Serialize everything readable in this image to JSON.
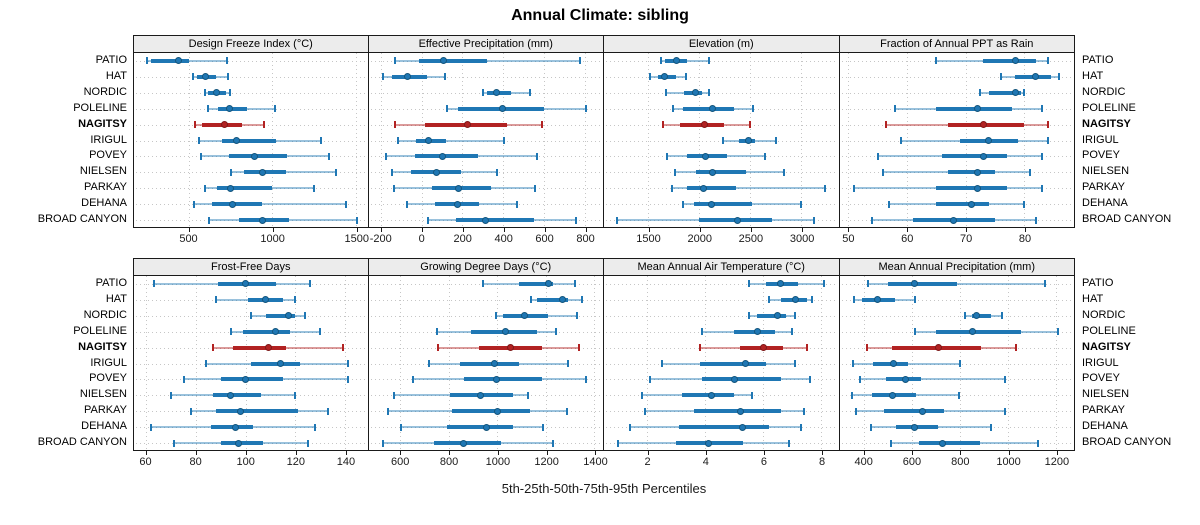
{
  "title": "Annual Climate: sibling",
  "caption": "5th-25th-50th-75th-95th Percentiles",
  "sites": [
    "PATIO",
    "HAT",
    "NORDIC",
    "POLELINE",
    "NAGITSY",
    "IRIGUL",
    "POVEY",
    "NIELSEN",
    "PARKAY",
    "DEHANA",
    "BROAD CANYON"
  ],
  "highlight_site": "NAGITSY",
  "percentile_labels": [
    "5th",
    "25th",
    "50th",
    "75th",
    "95th"
  ],
  "colors": {
    "series_blue": "#1f77b4",
    "series_blue_dark": "#14557c",
    "highlight_red": "#b22222",
    "highlight_red_dark": "#7e1818",
    "strip_bg": "#ececec",
    "panel_border": "#1a1a1a",
    "gridline": "#c6c6c6"
  },
  "chart_data": [
    {
      "type": "scatter",
      "style": "percentile-interval-dotplot",
      "title": "Design Freeze Index (°C)",
      "xlim": [
        170,
        1570
      ],
      "ticks": [
        500,
        1000,
        1500
      ],
      "values": [
        [
          250,
          270,
          435,
          500,
          730
        ],
        [
          525,
          550,
          600,
          660,
          735
        ],
        [
          595,
          615,
          665,
          720,
          745
        ],
        [
          615,
          675,
          745,
          850,
          1015
        ],
        [
          535,
          580,
          715,
          820,
          950
        ],
        [
          560,
          700,
          785,
          1020,
          1290
        ],
        [
          570,
          740,
          890,
          1090,
          1340
        ],
        [
          750,
          830,
          940,
          1080,
          1380
        ],
        [
          595,
          670,
          750,
          1000,
          1250
        ],
        [
          530,
          640,
          760,
          940,
          1440
        ],
        [
          620,
          800,
          940,
          1100,
          1505
        ]
      ]
    },
    {
      "type": "scatter",
      "style": "percentile-interval-dotplot",
      "title": "Effective Precipitation (mm)",
      "xlim": [
        -260,
        890
      ],
      "ticks": [
        -200,
        0,
        200,
        400,
        600,
        800
      ],
      "values": [
        [
          -130,
          -10,
          110,
          320,
          775
        ],
        [
          -190,
          -145,
          -70,
          25,
          115
        ],
        [
          300,
          320,
          370,
          440,
          530
        ],
        [
          125,
          180,
          395,
          600,
          805
        ],
        [
          -130,
          15,
          225,
          420,
          590
        ],
        [
          -115,
          -25,
          35,
          120,
          405
        ],
        [
          -175,
          -30,
          105,
          275,
          565
        ],
        [
          -145,
          -50,
          75,
          195,
          370
        ],
        [
          -135,
          50,
          180,
          340,
          555
        ],
        [
          -70,
          65,
          175,
          280,
          470
        ],
        [
          30,
          170,
          315,
          550,
          760
        ]
      ]
    },
    {
      "type": "scatter",
      "style": "percentile-interval-dotplot",
      "title": "Elevation (m)",
      "xlim": [
        1065,
        3365
      ],
      "ticks": [
        1500,
        2000,
        2500,
        3000
      ],
      "values": [
        [
          1620,
          1660,
          1775,
          1880,
          2095
        ],
        [
          1515,
          1590,
          1660,
          1770,
          1865
        ],
        [
          1670,
          1850,
          1965,
          2030,
          2095
        ],
        [
          1740,
          1835,
          2125,
          2340,
          2525
        ],
        [
          1645,
          1815,
          2055,
          2240,
          2500
        ],
        [
          2230,
          2390,
          2480,
          2550,
          2750
        ],
        [
          1685,
          1875,
          2060,
          2275,
          2645
        ],
        [
          1760,
          1965,
          2125,
          2455,
          2830
        ],
        [
          1730,
          1875,
          2040,
          2355,
          3230
        ],
        [
          1835,
          1950,
          2120,
          2520,
          3000
        ],
        [
          1195,
          2000,
          2370,
          2715,
          3125
        ]
      ]
    },
    {
      "type": "scatter",
      "style": "percentile-interval-dotplot",
      "title": "Fraction of Annual PPT as Rain",
      "xlim": [
        48.5,
        88.5
      ],
      "ticks": [
        50,
        60,
        70,
        80
      ],
      "values": [
        [
          65,
          73,
          78.5,
          82,
          84
        ],
        [
          76,
          78.5,
          82,
          84.5,
          86
        ],
        [
          72.5,
          74,
          78.5,
          79.5,
          80
        ],
        [
          58,
          65,
          72,
          78,
          83
        ],
        [
          56.5,
          67,
          73,
          80,
          84
        ],
        [
          59,
          69,
          74,
          79,
          84
        ],
        [
          55,
          66,
          73,
          77,
          83
        ],
        [
          56,
          67,
          72,
          75,
          81
        ],
        [
          51,
          65,
          72,
          77,
          83
        ],
        [
          57,
          65,
          71,
          74,
          80
        ],
        [
          54,
          61,
          68,
          75,
          82
        ]
      ]
    },
    {
      "type": "scatter",
      "style": "percentile-interval-dotplot",
      "title": "Frost-Free Days",
      "xlim": [
        55,
        149
      ],
      "ticks": [
        60,
        80,
        100,
        120,
        140
      ],
      "values": [
        [
          63,
          89,
          100,
          112,
          126
        ],
        [
          88,
          101,
          108,
          115,
          120
        ],
        [
          102,
          108,
          117,
          120,
          124
        ],
        [
          94,
          99,
          112,
          118,
          130
        ],
        [
          87,
          95,
          109,
          116,
          139
        ],
        [
          84,
          102,
          114,
          122,
          141
        ],
        [
          75,
          90,
          100,
          115,
          141
        ],
        [
          70,
          87,
          94,
          106,
          120
        ],
        [
          78,
          88,
          98,
          121,
          133
        ],
        [
          62,
          86,
          96,
          103,
          128
        ],
        [
          71,
          90,
          97,
          107,
          125
        ]
      ]
    },
    {
      "type": "scatter",
      "style": "percentile-interval-dotplot",
      "title": "Growing Degree Days (°C)",
      "xlim": [
        470,
        1435
      ],
      "ticks": [
        600,
        800,
        1000,
        1200,
        1400
      ],
      "values": [
        [
          940,
          1090,
          1210,
          1230,
          1320
        ],
        [
          1140,
          1165,
          1270,
          1290,
          1350
        ],
        [
          995,
          1025,
          1110,
          1210,
          1330
        ],
        [
          750,
          890,
          1035,
          1165,
          1240
        ],
        [
          755,
          925,
          1055,
          1185,
          1335
        ],
        [
          720,
          845,
          990,
          1090,
          1290
        ],
        [
          655,
          865,
          995,
          1185,
          1365
        ],
        [
          575,
          805,
          930,
          1065,
          1125
        ],
        [
          550,
          815,
          1000,
          1135,
          1285
        ],
        [
          605,
          795,
          955,
          1065,
          1190
        ],
        [
          530,
          740,
          860,
          1015,
          1230
        ]
      ]
    },
    {
      "type": "scatter",
      "style": "percentile-interval-dotplot",
      "title": "Mean Annual Air Temperature (°C)",
      "xlim": [
        0.5,
        8.6
      ],
      "ticks": [
        2,
        4,
        6,
        8
      ],
      "values": [
        [
          5.5,
          6.1,
          6.6,
          7.2,
          8.1
        ],
        [
          6.2,
          6.6,
          7.1,
          7.5,
          7.7
        ],
        [
          5.5,
          5.8,
          6.5,
          6.8,
          7.1
        ],
        [
          3.9,
          5.0,
          5.8,
          6.4,
          7.0
        ],
        [
          3.8,
          5.2,
          6.0,
          6.7,
          7.5
        ],
        [
          2.5,
          3.8,
          5.4,
          6.1,
          7.1
        ],
        [
          2.1,
          3.9,
          5.0,
          6.6,
          7.6
        ],
        [
          1.8,
          3.2,
          4.2,
          5.0,
          5.6
        ],
        [
          1.9,
          3.6,
          5.2,
          6.6,
          7.4
        ],
        [
          1.4,
          3.1,
          5.3,
          6.2,
          7.3
        ],
        [
          1.0,
          3.0,
          4.1,
          5.3,
          6.9
        ]
      ]
    },
    {
      "type": "scatter",
      "style": "percentile-interval-dotplot",
      "title": "Mean Annual Precipitation (mm)",
      "xlim": [
        300,
        1275
      ],
      "ticks": [
        400,
        600,
        800,
        1000,
        1200
      ],
      "values": [
        [
          420,
          500,
          610,
          790,
          1155
        ],
        [
          360,
          395,
          460,
          530,
          615
        ],
        [
          820,
          850,
          870,
          930,
          975
        ],
        [
          615,
          700,
          855,
          1055,
          1210
        ],
        [
          415,
          520,
          710,
          890,
          1035
        ],
        [
          355,
          440,
          525,
          585,
          800
        ],
        [
          385,
          495,
          575,
          640,
          990
        ],
        [
          350,
          435,
          520,
          620,
          795
        ],
        [
          370,
          485,
          645,
          735,
          990
        ],
        [
          430,
          535,
          610,
          710,
          930
        ],
        [
          515,
          630,
          730,
          885,
          1125
        ]
      ]
    }
  ]
}
